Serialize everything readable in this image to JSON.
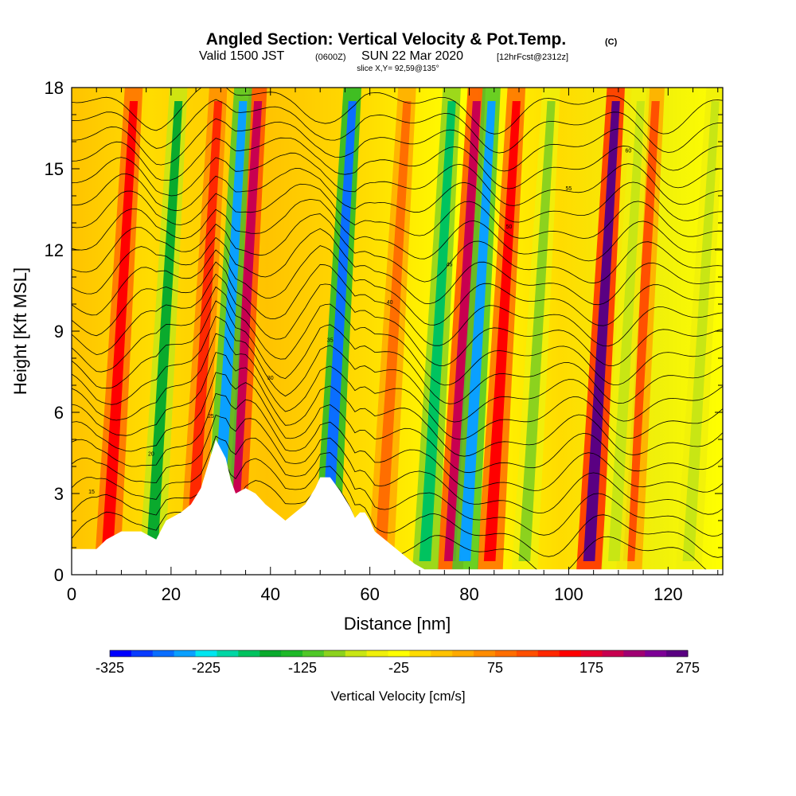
{
  "chart_data": {
    "type": "heatmap",
    "title": "Angled Section: Vertical Velocity & Pot.Temp.",
    "title_mark": "(C)",
    "subtitle": {
      "prefix": "Valid 1500 JST",
      "utc": "(0600Z)",
      "date": "SUN 22 Mar 2020",
      "forecast": "[12hrFcst@2312z]"
    },
    "slice_label": "slice X,Y= 92,59@135°",
    "xlabel": "Distance [nm]",
    "ylabel": "Height [Kft MSL]",
    "xlim": [
      0,
      131
    ],
    "ylim": [
      0,
      18
    ],
    "x_ticks": [
      0,
      20,
      40,
      60,
      80,
      100,
      120
    ],
    "y_ticks": [
      0,
      3,
      6,
      9,
      12,
      15,
      18
    ],
    "colorbar": {
      "label": "Vertical Velocity [cm/s]",
      "range": [
        -325,
        275
      ],
      "step": 25,
      "tick_labels": [
        "-325",
        "-225",
        "-125",
        "-25",
        "75",
        "175",
        "275"
      ],
      "colors": [
        "#0000ff",
        "#0a3cff",
        "#0a6eff",
        "#0aa0ff",
        "#00e6f0",
        "#00d7a5",
        "#00c35f",
        "#0aaa2d",
        "#1eb928",
        "#50c828",
        "#8cd21e",
        "#c8e614",
        "#f0f00a",
        "#ffff00",
        "#ffdc00",
        "#ffc300",
        "#ffaa00",
        "#ff8c00",
        "#ff6e00",
        "#ff5000",
        "#ff2800",
        "#ff0000",
        "#e6002d",
        "#c80050",
        "#a00073",
        "#7d0096",
        "#5a0082"
      ]
    },
    "updraft_columns": [
      {
        "x": 8,
        "value": 150
      },
      {
        "x": 25,
        "value": 120
      },
      {
        "x": 33,
        "value": 200
      },
      {
        "x": 63,
        "value": 90
      },
      {
        "x": 77,
        "value": 200
      },
      {
        "x": 85,
        "value": 150
      },
      {
        "x": 105,
        "value": 275
      },
      {
        "x": 113,
        "value": 100
      }
    ],
    "downdraft_columns": [
      {
        "x": 17,
        "value": -150
      },
      {
        "x": 30,
        "value": -250
      },
      {
        "x": 52,
        "value": -275
      },
      {
        "x": 72,
        "value": -175
      },
      {
        "x": 80,
        "value": -250
      },
      {
        "x": 92,
        "value": -100
      },
      {
        "x": 110,
        "value": -75
      },
      {
        "x": 125,
        "value": -75
      }
    ],
    "terrain": [
      [
        0,
        0.95
      ],
      [
        5,
        0.95
      ],
      [
        7,
        1.3
      ],
      [
        10,
        1.6
      ],
      [
        14,
        1.6
      ],
      [
        17,
        1.3
      ],
      [
        19,
        2.0
      ],
      [
        22,
        2.3
      ],
      [
        24,
        2.6
      ],
      [
        26,
        3.2
      ],
      [
        27,
        3.8
      ],
      [
        28,
        4.4
      ],
      [
        29,
        5.0
      ],
      [
        31,
        4.3
      ],
      [
        32,
        3.5
      ],
      [
        33,
        3.0
      ],
      [
        35,
        3.2
      ],
      [
        37,
        3.0
      ],
      [
        39,
        2.6
      ],
      [
        41,
        2.3
      ],
      [
        43,
        2.0
      ],
      [
        45,
        2.3
      ],
      [
        47,
        2.6
      ],
      [
        49,
        3.2
      ],
      [
        50,
        3.6
      ],
      [
        52,
        3.6
      ],
      [
        54,
        3.1
      ],
      [
        56,
        2.5
      ],
      [
        57,
        2.1
      ],
      [
        58,
        2.3
      ],
      [
        59,
        2.3
      ],
      [
        60,
        2.0
      ],
      [
        61,
        1.6
      ],
      [
        63,
        1.3
      ],
      [
        65,
        1.0
      ],
      [
        67,
        0.7
      ],
      [
        69,
        0.4
      ],
      [
        71,
        0.2
      ],
      [
        73,
        0.2
      ],
      [
        131,
        0.2
      ]
    ],
    "contour_labels": [
      "15",
      "20",
      "25",
      "30",
      "35",
      "40",
      "45",
      "50",
      "55",
      "60"
    ]
  }
}
